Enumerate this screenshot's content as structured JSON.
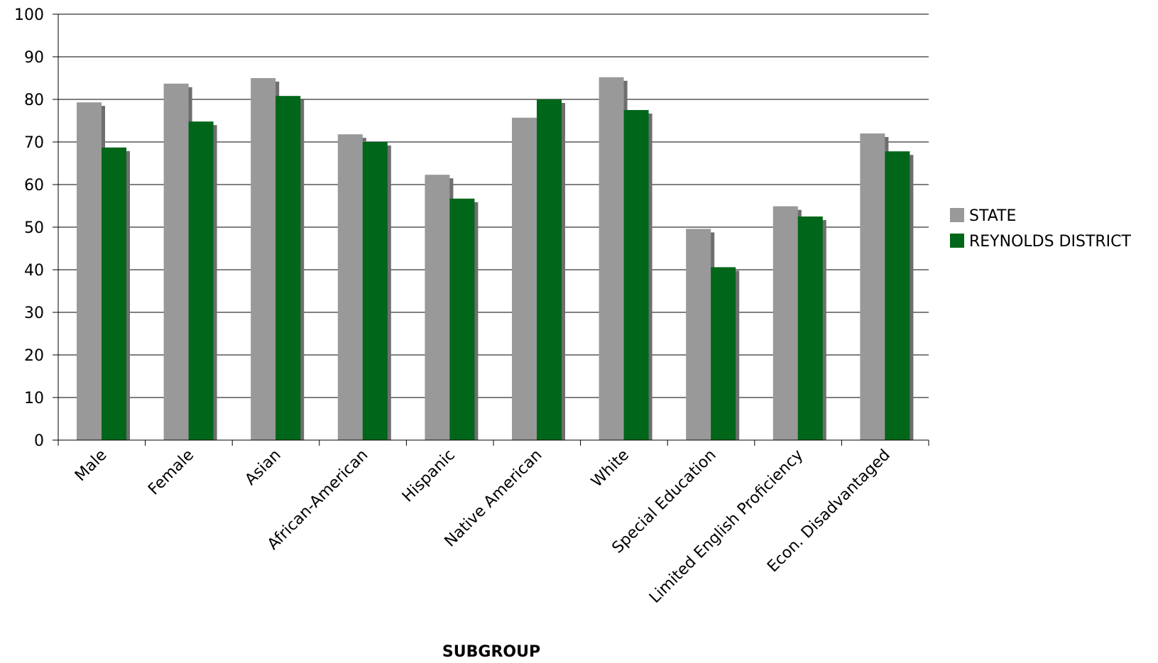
{
  "chart_data": {
    "type": "bar",
    "title": "",
    "xlabel": "SUBGROUP",
    "ylabel": "",
    "ylim": [
      0,
      100
    ],
    "yticks": [
      0,
      10,
      20,
      30,
      40,
      50,
      60,
      70,
      80,
      90,
      100
    ],
    "grid": true,
    "legend_position": "right",
    "categories": [
      "Male",
      "Female",
      "Asian",
      "African-American",
      "Hispanic",
      "Native American",
      "White",
      "Special Education",
      "Limited English Proficiency",
      "Econ. Disadvantaged"
    ],
    "series": [
      {
        "name": "STATE",
        "color": "#999999",
        "values": [
          79.3,
          83.7,
          85.0,
          71.8,
          62.3,
          75.7,
          85.2,
          49.6,
          54.9,
          72.0
        ]
      },
      {
        "name": "REYNOLDS DISTRICT",
        "color": "#006619",
        "values": [
          68.7,
          74.8,
          80.8,
          70.0,
          56.7,
          80.0,
          77.5,
          40.6,
          52.5,
          67.8
        ]
      }
    ]
  }
}
